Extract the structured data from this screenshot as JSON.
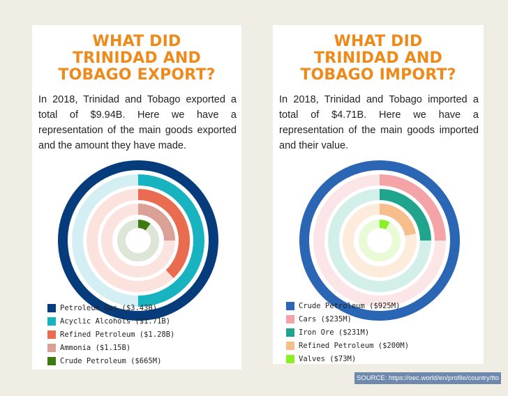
{
  "export": {
    "title_lines": [
      "WHAT DID",
      "TRINIDAD AND",
      "TOBAGO EXPORT?"
    ],
    "description": "In 2018, Trinidad and Tobago exported a total of $9.94B. Here we have a representation of the main goods exported and the amount they have made.",
    "legend": [
      {
        "label": "Petroleum Gas ($3.43B)",
        "color": "#063c7c"
      },
      {
        "label": "Acyclic Alcohols ($1.71B)",
        "color": "#17b3c1"
      },
      {
        "label": "Refined Petroleum ($1.28B)",
        "color": "#ea6c50"
      },
      {
        "label": "Ammonia ($1.15B)",
        "color": "#dba196"
      },
      {
        "label": "Crude Petroleum ($665M)",
        "color": "#3f7a10"
      }
    ]
  },
  "import": {
    "title_lines": [
      "WHAT DID",
      "TRINIDAD AND",
      "TOBAGO IMPORT?"
    ],
    "description": "In 2018, Trinidad and Tobago imported a total of $4.71B. Here we have a representation of the main goods imported and their value.",
    "legend": [
      {
        "label": "Crude Petroleum ($925M)",
        "color": "#2a66b3"
      },
      {
        "label": "Cars ($235M)",
        "color": "#f4a4a6"
      },
      {
        "label": "Iron Ore ($231M)",
        "color": "#20a58c"
      },
      {
        "label": "Refined Petroleum ($200M)",
        "color": "#f5be8a"
      },
      {
        "label": "Valves ($73M)",
        "color": "#8bf023"
      }
    ]
  },
  "chart_data": [
    {
      "type": "radial-bar",
      "categories": [
        "Petroleum Gas",
        "Acyclic Alcohols",
        "Refined Petroleum",
        "Ammonia",
        "Crude Petroleum"
      ],
      "values": [
        3.43,
        1.71,
        1.28,
        1.15,
        0.665
      ],
      "fractions": [
        1.0,
        0.5,
        0.38,
        0.25,
        0.1
      ],
      "colors": [
        "#063c7c",
        "#17b3c1",
        "#ea6c50",
        "#dba196",
        "#3f7a10"
      ],
      "track_colors": [
        "#d5eef4",
        "#d3eff3",
        "#fbe2dd",
        "#fbe3e0",
        "#dde6d6"
      ],
      "unit": "$B"
    },
    {
      "type": "radial-bar",
      "categories": [
        "Crude Petroleum",
        "Cars",
        "Iron Ore",
        "Refined Petroleum",
        "Valves"
      ],
      "values": [
        925,
        235,
        231,
        200,
        73
      ],
      "fractions": [
        1.0,
        0.25,
        0.25,
        0.22,
        0.08
      ],
      "colors": [
        "#2a66b3",
        "#f4a4a6",
        "#20a58c",
        "#f5be8a",
        "#8bf023"
      ],
      "track_colors": [
        "#fce5e6",
        "#fce5e6",
        "#d3efe9",
        "#fdecdc",
        "#e9fbd6"
      ],
      "unit": "$M"
    }
  ],
  "source": "SOURCE: https://oec.world/en/profile/country/tto"
}
